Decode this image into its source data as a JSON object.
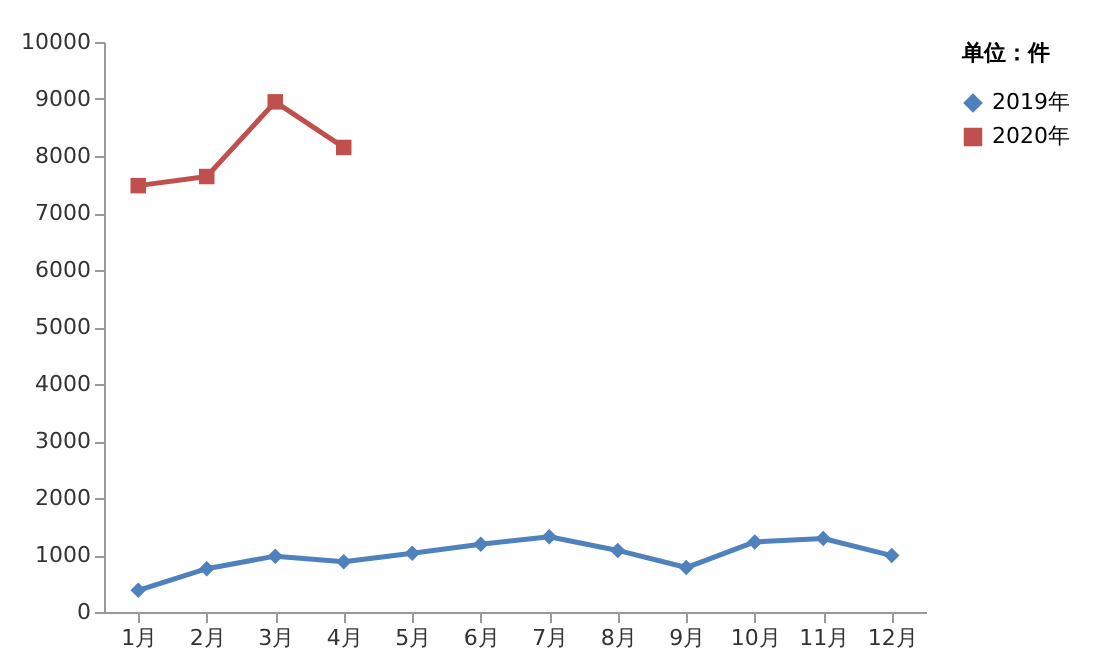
{
  "chart_data": {
    "type": "line",
    "categories": [
      "1月",
      "2月",
      "3月",
      "4月",
      "5月",
      "6月",
      "7月",
      "8月",
      "9月",
      "10月",
      "11月",
      "12月"
    ],
    "series": [
      {
        "name": "2019年",
        "color": "#4f81bd",
        "marker": "diamond",
        "values": [
          380,
          760,
          980,
          880,
          1030,
          1190,
          1320,
          1080,
          780,
          1230,
          1290,
          990
        ]
      },
      {
        "name": "2020年",
        "color": "#c0504d",
        "marker": "square",
        "values": [
          7480,
          7640,
          8950,
          8150,
          null,
          null,
          null,
          null,
          null,
          null,
          null,
          null
        ]
      }
    ],
    "ylim": [
      0,
      10000
    ],
    "yticks": [
      0,
      1000,
      2000,
      3000,
      4000,
      5000,
      6000,
      7000,
      8000,
      9000,
      10000
    ],
    "legend_title": "单位：件",
    "legend": "right",
    "grid": false,
    "line_style": "solid"
  }
}
